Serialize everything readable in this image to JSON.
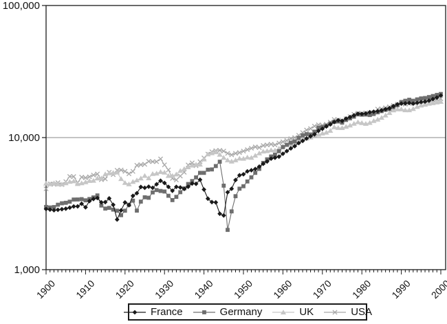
{
  "chart_data": {
    "type": "line",
    "title": "",
    "xlabel": "",
    "ylabel": "",
    "yscale": "log",
    "ylim": [
      1000,
      100000
    ],
    "ytick_values": [
      1000,
      10000,
      100000
    ],
    "ytick_labels": [
      "1,000",
      "10,000",
      "100,000"
    ],
    "x_start": 1900,
    "x_end": 2000,
    "x_step": 1,
    "xtick_labels": [
      "1900",
      "1910",
      "1920",
      "1930",
      "1940",
      "1950",
      "1960",
      "1970",
      "1980",
      "1990",
      "2000"
    ],
    "xticks": [
      1900,
      1910,
      1920,
      1930,
      1940,
      1950,
      1960,
      1970,
      1980,
      1990,
      2000
    ],
    "grid": "horizontal-at-10000",
    "gridline_values": [
      10000
    ],
    "legend_position": "bottom",
    "series": [
      {
        "name": "France",
        "marker": "diamond",
        "color": "#1a1a1a",
        "values": [
          2876,
          2849,
          2820,
          2840,
          2870,
          2894,
          2946,
          3011,
          3013,
          3154,
          2965,
          3306,
          3426,
          3485,
          3236,
          3248,
          3463,
          3099,
          2396,
          2811,
          3227,
          3075,
          3622,
          3792,
          4227,
          4166,
          4245,
          4165,
          4431,
          4710,
          4532,
          4235,
          3959,
          4239,
          4192,
          4086,
          4244,
          4487,
          4466,
          4793,
          4042,
          3447,
          3248,
          3233,
          2651,
          2573,
          3855,
          4099,
          4772,
          5186,
          5271,
          5553,
          5656,
          5782,
          6028,
          6335,
          6589,
          6931,
          7040,
          7176,
          7546,
          7905,
          8283,
          8609,
          9081,
          9427,
          9842,
          10228,
          10578,
          11243,
          11664,
          12147,
          12575,
          13114,
          13525,
          13390,
          13925,
          14302,
          14709,
          15149,
          15106,
          15228,
          15558,
          15699,
          15848,
          16060,
          16390,
          16693,
          17308,
          17860,
          18093,
          18155,
          18294,
          18083,
          18322,
          18578,
          18730,
          19040,
          19585,
          20085,
          20808
        ]
      },
      {
        "name": "Germany",
        "marker": "square",
        "color": "#6e6e6e",
        "values": [
          2985,
          2958,
          2980,
          3104,
          3180,
          3209,
          3269,
          3394,
          3399,
          3420,
          3348,
          3428,
          3524,
          3648,
          3059,
          2899,
          2935,
          2849,
          2796,
          2586,
          2796,
          3102,
          3331,
          2797,
          3273,
          3532,
          3500,
          3843,
          4006,
          3941,
          3904,
          3627,
          3362,
          3556,
          3858,
          4120,
          4451,
          4685,
          4994,
          5406,
          5403,
          5711,
          5740,
          6084,
          6568,
          4326,
          2000,
          2763,
          3600,
          4100,
          4281,
          4651,
          4998,
          5408,
          5797,
          6431,
          6846,
          7192,
          7416,
          7890,
          8463,
          8810,
          9148,
          9363,
          9936,
          10393,
          10619,
          10558,
          11084,
          11839,
          11993,
          12299,
          12767,
          13152,
          13236,
          12969,
          13596,
          13986,
          14398,
          14975,
          14914,
          14947,
          14821,
          15094,
          15535,
          15867,
          16211,
          16444,
          17020,
          17579,
          18600,
          19000,
          19351,
          18996,
          19458,
          19780,
          19937,
          20266,
          20637,
          21024,
          21400
        ]
      },
      {
        "name": "UK",
        "marker": "triangle",
        "color": "#c6c6c6",
        "values": [
          4492,
          4450,
          4525,
          4440,
          4433,
          4520,
          4640,
          4683,
          4459,
          4522,
          4611,
          4709,
          4724,
          4921,
          4927,
          5288,
          5384,
          5421,
          5459,
          4870,
          4548,
          4439,
          4637,
          4760,
          4921,
          5144,
          4936,
          5315,
          5357,
          5503,
          5441,
          5138,
          5148,
          5277,
          5608,
          5799,
          5980,
          6161,
          6266,
          6262,
          6856,
          7479,
          7639,
          7771,
          7437,
          7056,
          6745,
          6604,
          6746,
          6956,
          6939,
          7091,
          7046,
          7317,
          7619,
          7868,
          7929,
          8038,
          8008,
          8287,
          8645,
          8857,
          8884,
          9149,
          9568,
          9752,
          9862,
          10047,
          10410,
          10549,
          10767,
          10941,
          11281,
          12025,
          11859,
          11847,
          12115,
          12386,
          12779,
          13114,
          12931,
          12747,
          12955,
          13404,
          13720,
          14165,
          14742,
          15393,
          16110,
          16414,
          16430,
          16154,
          16165,
          16501,
          17132,
          17536,
          17800,
          18100,
          18300,
          18500,
          18700
        ]
      },
      {
        "name": "USA",
        "marker": "x",
        "color": "#a8a8a8",
        "values": [
          4091,
          4464,
          4421,
          4551,
          4410,
          4642,
          5079,
          5065,
          4561,
          5017,
          4964,
          5046,
          5201,
          5301,
          4799,
          4864,
          5459,
          5248,
          5659,
          5680,
          5552,
          5323,
          5540,
          6164,
          6233,
          6282,
          6602,
          6576,
          6569,
          6899,
          6213,
          5691,
          4908,
          4777,
          5114,
          5467,
          6204,
          6430,
          6126,
          6561,
          7010,
          7500,
          7800,
          7950,
          8000,
          7900,
          7600,
          7400,
          7600,
          7700,
          7900,
          8100,
          8300,
          8500,
          8400,
          8700,
          8800,
          8900,
          8800,
          9100,
          9300,
          9500,
          9800,
          10000,
          10400,
          10900,
          11400,
          11700,
          12200,
          12500,
          12400,
          12600,
          13100,
          13700,
          13600,
          13400,
          13900,
          14400,
          15000,
          15300,
          15200,
          15400,
          15000,
          15500,
          16400,
          16500,
          16800,
          17100,
          17500,
          17900,
          18200,
          17900,
          18100,
          18300,
          18500,
          18700,
          18900,
          19100,
          19300,
          19500,
          19700
        ]
      }
    ]
  },
  "legend": {
    "items": [
      {
        "label": "France"
      },
      {
        "label": "Germany"
      },
      {
        "label": "UK"
      },
      {
        "label": "USA"
      }
    ]
  }
}
